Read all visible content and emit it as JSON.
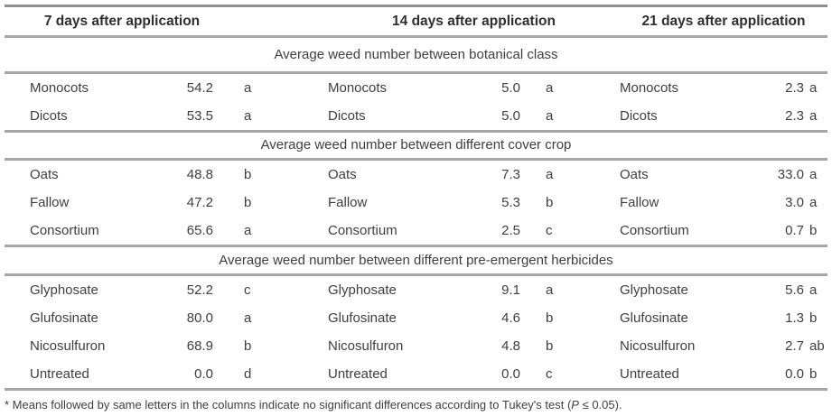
{
  "table": {
    "column_headers": [
      "7 days after application",
      "14 days after application",
      "21 days after application"
    ],
    "sections": [
      {
        "title": "Average weed number between botanical class",
        "rows": [
          {
            "g1": {
              "name": "Monocots",
              "value": "54.2",
              "letter": "a"
            },
            "g2": {
              "name": "Monocots",
              "value": "5.0",
              "letter": "a"
            },
            "g3": {
              "name": "Monocots",
              "value": "2.3",
              "letter": "a"
            }
          },
          {
            "g1": {
              "name": "Dicots",
              "value": "53.5",
              "letter": "a"
            },
            "g2": {
              "name": "Dicots",
              "value": "5.0",
              "letter": "a"
            },
            "g3": {
              "name": "Dicots",
              "value": "2.3",
              "letter": "a"
            }
          }
        ]
      },
      {
        "title": "Average weed number between different cover crop",
        "rows": [
          {
            "g1": {
              "name": "Oats",
              "value": "48.8",
              "letter": "b"
            },
            "g2": {
              "name": "Oats",
              "value": "7.3",
              "letter": "a"
            },
            "g3": {
              "name": "Oats",
              "value": "33.0",
              "letter": "a"
            }
          },
          {
            "g1": {
              "name": "Fallow",
              "value": "47.2",
              "letter": "b"
            },
            "g2": {
              "name": "Fallow",
              "value": "5.3",
              "letter": "b"
            },
            "g3": {
              "name": "Fallow",
              "value": "3.0",
              "letter": "a"
            }
          },
          {
            "g1": {
              "name": "Consortium",
              "value": "65.6",
              "letter": "a"
            },
            "g2": {
              "name": "Consortium",
              "value": "2.5",
              "letter": "c"
            },
            "g3": {
              "name": "Consortium",
              "value": "0.7",
              "letter": "b"
            }
          }
        ]
      },
      {
        "title": "Average weed number between different pre-emergent herbicides",
        "rows": [
          {
            "g1": {
              "name": "Glyphosate",
              "value": "52.2",
              "letter": "c"
            },
            "g2": {
              "name": "Glyphosate",
              "value": "9.1",
              "letter": "a"
            },
            "g3": {
              "name": "Glyphosate",
              "value": "5.6",
              "letter": "a"
            }
          },
          {
            "g1": {
              "name": "Glufosinate",
              "value": "80.0",
              "letter": "a"
            },
            "g2": {
              "name": "Glufosinate",
              "value": "4.6",
              "letter": "b"
            },
            "g3": {
              "name": "Glufosinate",
              "value": "1.3",
              "letter": "b"
            }
          },
          {
            "g1": {
              "name": "Nicosulfuron",
              "value": "68.9",
              "letter": "b"
            },
            "g2": {
              "name": "Nicosulfuron",
              "value": "4.8",
              "letter": "b"
            },
            "g3": {
              "name": "Nicosulfuron",
              "value": "2.7",
              "letter": "ab"
            }
          },
          {
            "g1": {
              "name": "Untreated",
              "value": "0.0",
              "letter": "d"
            },
            "g2": {
              "name": "Untreated",
              "value": "0.0",
              "letter": "c"
            },
            "g3": {
              "name": "Untreated",
              "value": "0.0",
              "letter": "b"
            }
          }
        ]
      }
    ],
    "footnote": {
      "prefix": "* Means followed by same letters in the columns indicate no significant differences according to Tukey's test (",
      "p_symbol": "P",
      "suffix": " ≤ 0.05)."
    }
  }
}
